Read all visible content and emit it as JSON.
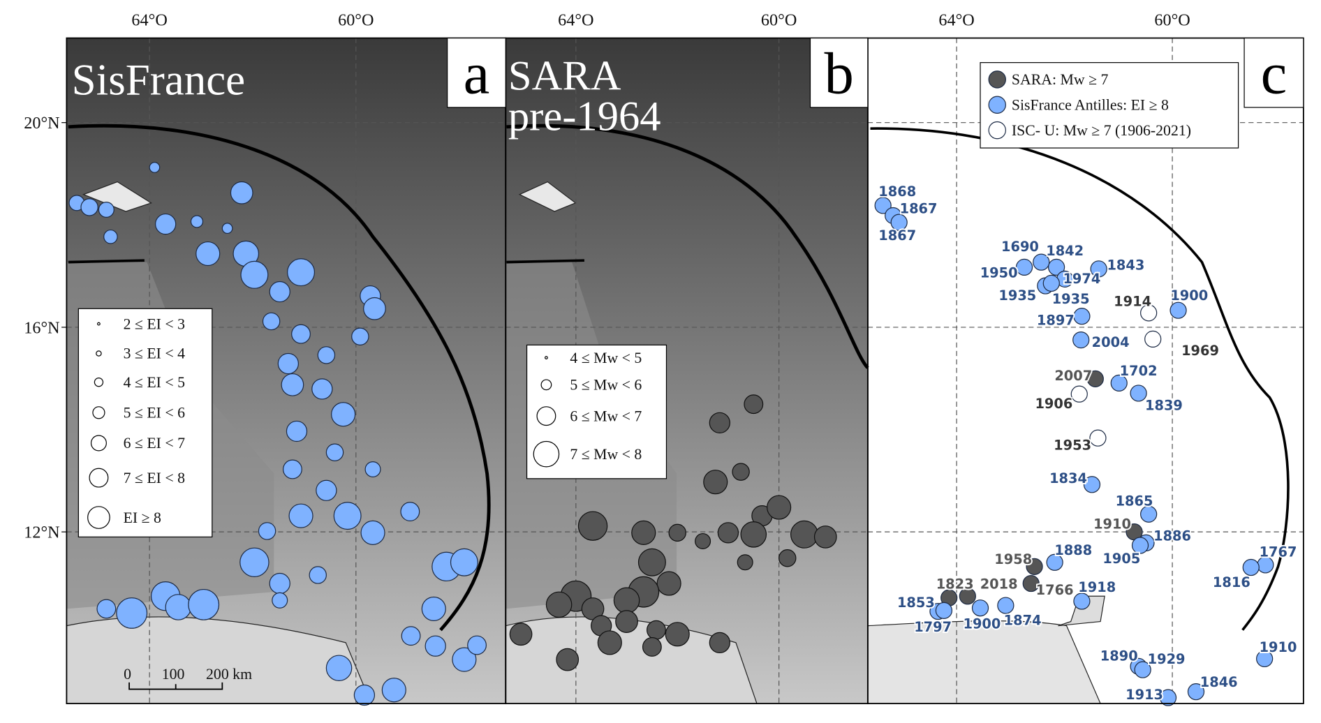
{
  "axes": {
    "top_labels": [
      "64°O",
      "60°O"
    ],
    "left_labels": [
      "20°N",
      "16°N",
      "12°N"
    ]
  },
  "panels": [
    {
      "letter": "a",
      "title": "SisFrance",
      "legend": [
        "2 ≤ EI < 3",
        "3 ≤ EI < 4",
        "4 ≤ EI < 5",
        "5 ≤ EI < 6",
        "6 ≤ EI < 7",
        "7 ≤ EI < 8",
        "EI ≥ 8"
      ],
      "scale_bar": [
        "0",
        "100",
        "200 km"
      ]
    },
    {
      "letter": "b",
      "title_lines": [
        "SARA",
        "pre-1964"
      ],
      "legend": [
        "4 ≤ Mw < 5",
        "5 ≤ Mw < 6",
        "6 ≤ Mw < 7",
        "7 ≤ Mw < 8"
      ]
    },
    {
      "letter": "c",
      "legend": [
        "SARA: Mw ≥ 7",
        "SisFrance Antilles: EI ≥ 8",
        "ISC- U: Mw ≥ 7 (1906-2021)"
      ],
      "event_labels": [
        "1868",
        "1867",
        "1867",
        "1690",
        "1842",
        "1950",
        "1974",
        "1843",
        "1935",
        "1935",
        "1914",
        "1900",
        "1897",
        "2004",
        "1969",
        "2007",
        "1702",
        "1906",
        "1839",
        "1953",
        "1834",
        "1865",
        "1910",
        "1886",
        "1905",
        "1958",
        "1888",
        "1766",
        "1918",
        "1823",
        "2018",
        "1853",
        "1797",
        "1900",
        "1874",
        "1767",
        "1816",
        "1910",
        "1890",
        "1929",
        "1846",
        "1913"
      ]
    }
  ]
}
